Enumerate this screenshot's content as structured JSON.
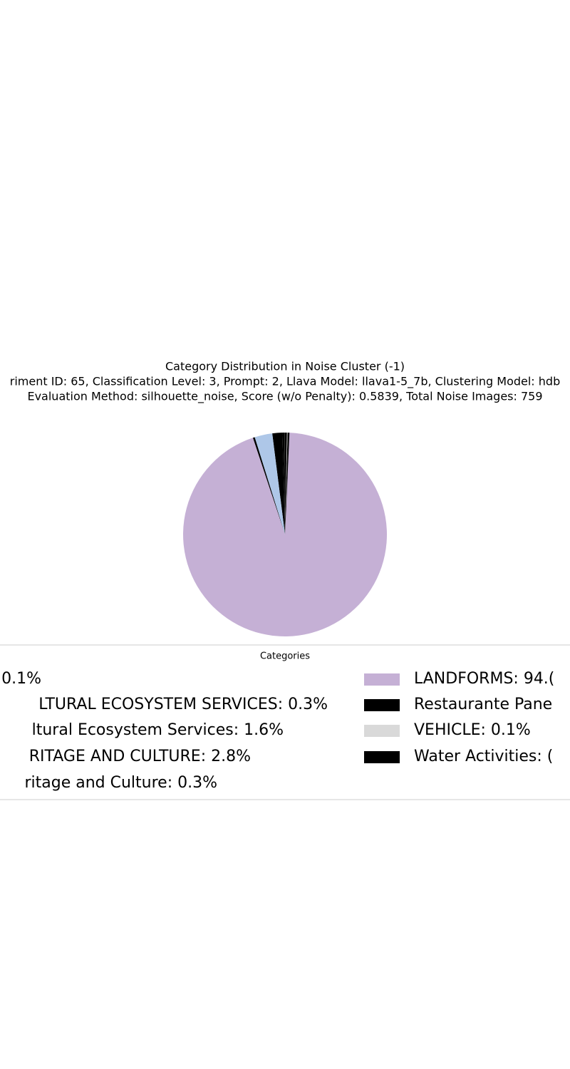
{
  "chart_data": {
    "type": "pie",
    "title": "Category Distribution in Noise Cluster (-1)",
    "subtitle": [
      "riment ID: 65, Classification Level: 3, Prompt: 2, Llava Model: llava1-5_7b, Clustering Model: hdb",
      "Evaluation Method: silhouette_noise, Score (w/o Penalty): 0.5839, Total Noise Images: 759"
    ],
    "legend_title": "Categories",
    "categories": [
      "0.1%",
      "LTURAL ECOSYSTEM SERVICES: 0.3%",
      "ltural Ecosystem Services: 1.6%",
      "RITAGE AND CULTURE: 2.8%",
      "ritage and Culture: 0.3%",
      "LANDFORMS: 94.(",
      "Restaurante Pane",
      "VEHICLE: 0.1%",
      "Water Activities: ("
    ],
    "values": [
      0.1,
      0.3,
      1.6,
      2.8,
      0.3,
      94.1,
      0.3,
      0.1,
      0.3
    ],
    "colors": [
      "#1f1f1f",
      "#000000",
      "#000000",
      "#aec7e8",
      "#000000",
      "#c5b0d5",
      "#000000",
      "#d9d9d9",
      "#000000"
    ],
    "start_angle": 90
  }
}
